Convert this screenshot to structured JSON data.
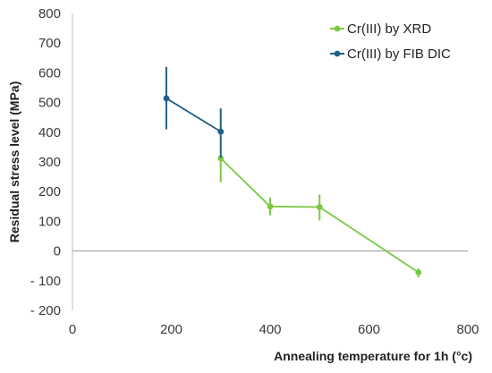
{
  "chart_data": {
    "type": "line",
    "title": "",
    "xlabel": "Annealing temperature for 1h (°c)",
    "ylabel": "Residual stress level (MPa)",
    "xlim": [
      0,
      800
    ],
    "ylim": [
      -200,
      800
    ],
    "x_ticks": [
      0,
      200,
      400,
      600,
      800
    ],
    "y_ticks": [
      800,
      700,
      600,
      500,
      400,
      300,
      200,
      100,
      0,
      -100,
      -200
    ],
    "x_tick_labels": [
      "0",
      "200",
      "400",
      "600",
      "800"
    ],
    "y_tick_labels": [
      "800",
      "700",
      "600",
      "500",
      "400",
      "300",
      "200",
      "100",
      "0",
      "- 100",
      "- 200"
    ],
    "grid": false,
    "legend_position": "top-right",
    "series": [
      {
        "name": "Cr(III) by XRD",
        "color": "#7ac943",
        "x": [
          300,
          400,
          500,
          700
        ],
        "y": [
          312,
          150,
          148,
          -72
        ],
        "err_low": [
          80,
          30,
          45,
          17
        ],
        "err_high": [
          0,
          30,
          42,
          13
        ]
      },
      {
        "name": "Cr(III) by FIB DIC",
        "color": "#1f5f8b",
        "x": [
          190,
          300
        ],
        "y": [
          514,
          402
        ],
        "err_low": [
          104,
          88
        ],
        "err_high": [
          106,
          78
        ]
      }
    ]
  }
}
